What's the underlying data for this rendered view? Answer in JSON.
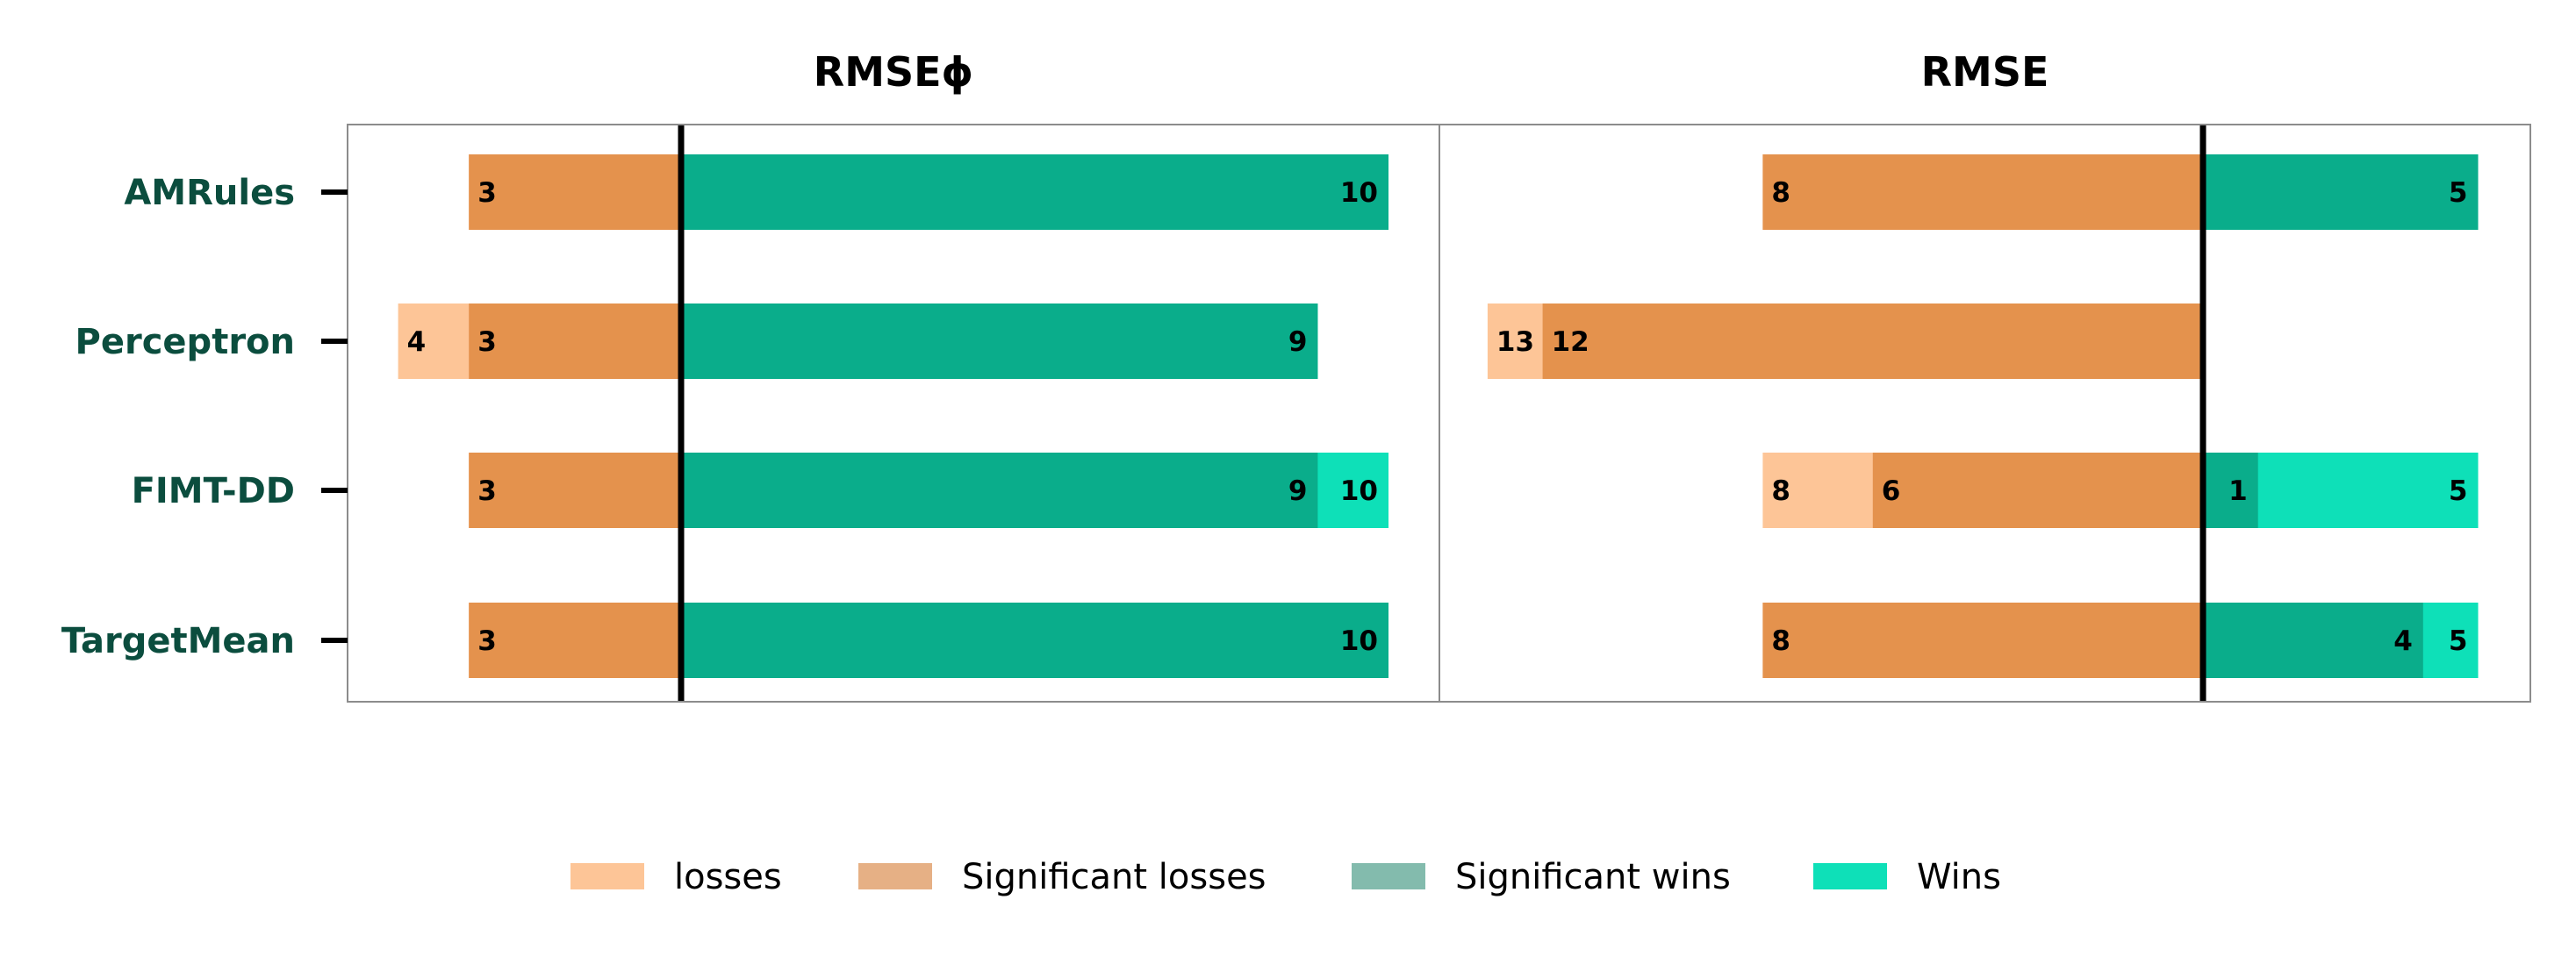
{
  "chart_data": {
    "type": "bar",
    "orientation": "horizontal",
    "stacked": "diverging",
    "categories": [
      "AMRules",
      "Perceptron",
      "FIMT-DD",
      "TargetMean"
    ],
    "panels": [
      {
        "title": "RMSEϕ",
        "series": [
          {
            "key": "losses",
            "values": [
              3,
              4,
              3,
              3
            ],
            "labels": [
              "",
              "4",
              "",
              ""
            ]
          },
          {
            "key": "significant_losses",
            "values": [
              3,
              3,
              3,
              3
            ],
            "labels": [
              "3",
              "3",
              "3",
              "3"
            ]
          },
          {
            "key": "significant_wins",
            "values": [
              10,
              9,
              9,
              10
            ],
            "labels": [
              "10",
              "9",
              "9",
              "10"
            ]
          },
          {
            "key": "wins",
            "values": [
              10,
              9,
              10,
              10
            ],
            "labels": [
              "",
              "",
              "10",
              ""
            ]
          }
        ]
      },
      {
        "title": "RMSE",
        "series": [
          {
            "key": "losses",
            "values": [
              8,
              13,
              8,
              8
            ],
            "labels": [
              "",
              "13",
              "8",
              ""
            ]
          },
          {
            "key": "significant_losses",
            "values": [
              8,
              12,
              6,
              8
            ],
            "labels": [
              "8",
              "12",
              "6",
              "8"
            ]
          },
          {
            "key": "significant_wins",
            "values": [
              5,
              0,
              1,
              4
            ],
            "labels": [
              "5",
              "",
              "1",
              "4"
            ]
          },
          {
            "key": "wins",
            "values": [
              5,
              0,
              5,
              5
            ],
            "labels": [
              "",
              "",
              "5",
              "5"
            ]
          }
        ]
      }
    ],
    "legend": {
      "position": "bottom",
      "entries": [
        {
          "key": "losses",
          "label": "losses",
          "color": "#fdc597"
        },
        {
          "key": "significant_losses",
          "label": "Significant losses",
          "color": "#e6b085"
        },
        {
          "key": "significant_wins",
          "label": "Significant wins",
          "color": "#83bbad"
        },
        {
          "key": "wins",
          "label": "Wins",
          "color": "#0ee0b8"
        }
      ]
    },
    "colors": {
      "losses": "#fdc597",
      "significant_losses": "#e4924d",
      "significant_wins": "#0aad8b",
      "wins": "#0ee0b8",
      "category_label": "#0b4d3e"
    },
    "grid": false
  }
}
